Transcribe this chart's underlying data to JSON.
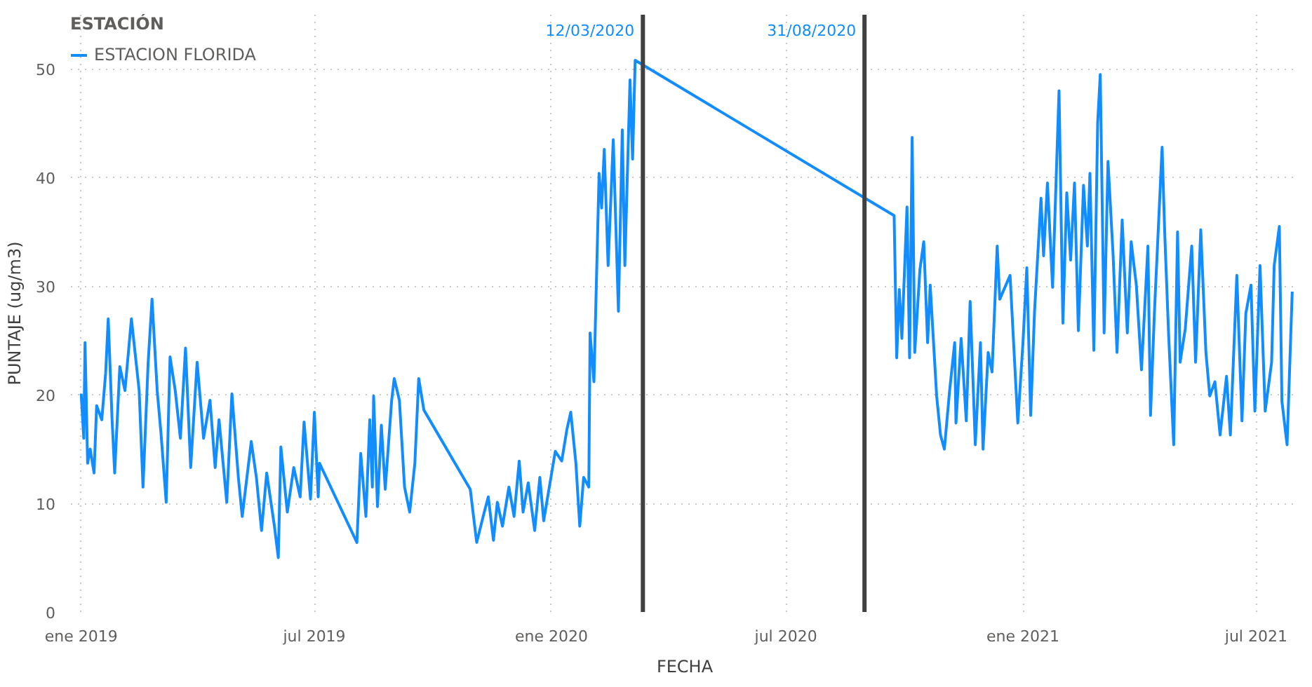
{
  "chart_data": {
    "type": "line",
    "xlabel": "FECHA",
    "ylabel": "PUNTAJE (ug/m3)",
    "legend_title": "ESTACIÓN",
    "x": [
      "2019-01-01",
      "2019-01-03",
      "2019-01-04",
      "2019-01-06",
      "2019-01-08",
      "2019-01-11",
      "2019-01-13",
      "2019-01-17",
      "2019-01-20",
      "2019-01-22",
      "2019-01-25",
      "2019-01-27",
      "2019-01-31",
      "2019-02-04",
      "2019-02-09",
      "2019-02-15",
      "2019-02-18",
      "2019-02-22",
      "2019-02-25",
      "2019-03-01",
      "2019-03-04",
      "2019-03-08",
      "2019-03-11",
      "2019-03-15",
      "2019-03-19",
      "2019-03-23",
      "2019-03-27",
      "2019-04-01",
      "2019-04-06",
      "2019-04-11",
      "2019-04-15",
      "2019-04-18",
      "2019-04-24",
      "2019-04-28",
      "2019-05-03",
      "2019-05-06",
      "2019-05-13",
      "2019-05-17",
      "2019-05-21",
      "2019-05-25",
      "2019-05-31",
      "2019-06-03",
      "2019-06-05",
      "2019-06-10",
      "2019-06-15",
      "2019-06-20",
      "2019-06-23",
      "2019-06-28",
      "2019-07-01",
      "2019-07-04",
      "2019-07-05",
      "2019-08-03",
      "2019-08-06",
      "2019-08-10",
      "2019-08-13",
      "2019-08-15",
      "2019-08-16",
      "2019-08-19",
      "2019-08-22",
      "2019-08-25",
      "2019-08-30",
      "2019-09-01",
      "2019-09-05",
      "2019-09-09",
      "2019-09-13",
      "2019-09-17",
      "2019-09-20",
      "2019-09-24",
      "2019-10-30",
      "2019-11-04",
      "2019-11-09",
      "2019-11-13",
      "2019-11-17",
      "2019-11-20",
      "2019-11-24",
      "2019-11-29",
      "2019-12-03",
      "2019-12-07",
      "2019-12-10",
      "2019-12-14",
      "2019-12-19",
      "2019-12-23",
      "2019-12-26",
      "2020-01-04",
      "2020-01-09",
      "2020-01-13",
      "2020-01-16",
      "2020-01-20",
      "2020-01-23",
      "2020-01-26",
      "2020-01-30",
      "2020-01-31",
      "2020-02-03",
      "2020-02-07",
      "2020-02-09",
      "2020-02-11",
      "2020-02-14",
      "2020-02-18",
      "2020-02-22",
      "2020-02-25",
      "2020-02-27",
      "2020-03-02",
      "2020-03-04",
      "2020-03-06",
      "2020-09-23",
      "2020-09-25",
      "2020-09-27",
      "2020-09-29",
      "2020-10-03",
      "2020-10-05",
      "2020-10-07",
      "2020-10-09",
      "2020-10-13",
      "2020-10-16",
      "2020-10-19",
      "2020-10-21",
      "2020-10-26",
      "2020-10-29",
      "2020-11-01",
      "2020-11-05",
      "2020-11-09",
      "2020-11-10",
      "2020-11-14",
      "2020-11-18",
      "2020-11-21",
      "2020-11-25",
      "2020-11-29",
      "2020-12-01",
      "2020-12-05",
      "2020-12-08",
      "2020-12-12",
      "2020-12-14",
      "2020-12-22",
      "2020-12-28",
      "2021-01-01",
      "2021-01-04",
      "2021-01-07",
      "2021-01-10",
      "2021-01-15",
      "2021-01-17",
      "2021-01-20",
      "2021-01-24",
      "2021-01-29",
      "2021-02-01",
      "2021-02-04",
      "2021-02-07",
      "2021-02-10",
      "2021-02-13",
      "2021-02-17",
      "2021-02-20",
      "2021-02-22",
      "2021-02-25",
      "2021-02-28",
      "2021-03-02",
      "2021-03-05",
      "2021-03-08",
      "2021-03-12",
      "2021-03-15",
      "2021-03-19",
      "2021-03-23",
      "2021-03-26",
      "2021-03-30",
      "2021-04-03",
      "2021-04-08",
      "2021-04-10",
      "2021-04-13",
      "2021-04-19",
      "2021-04-21",
      "2021-04-24",
      "2021-04-28",
      "2021-05-01",
      "2021-05-03",
      "2021-05-07",
      "2021-05-12",
      "2021-05-15",
      "2021-05-19",
      "2021-05-23",
      "2021-05-26",
      "2021-05-30",
      "2021-06-03",
      "2021-06-08",
      "2021-06-11",
      "2021-06-16",
      "2021-06-20",
      "2021-06-23",
      "2021-06-27",
      "2021-06-30",
      "2021-07-04",
      "2021-07-08",
      "2021-07-13",
      "2021-07-15",
      "2021-07-19",
      "2021-07-21",
      "2021-07-25",
      "2021-07-29"
    ],
    "series": [
      {
        "name": "ESTACION FLORIDA",
        "color": "#118dff",
        "values": [
          20.1,
          16,
          24.8,
          13.7,
          15,
          12.8,
          19,
          17.7,
          22,
          27,
          17.7,
          12.8,
          22.6,
          20.4,
          27,
          20.4,
          11.5,
          23,
          28.8,
          20.4,
          16.4,
          10.1,
          23.5,
          20.4,
          16,
          24.3,
          13.3,
          23,
          16,
          19.5,
          13.3,
          17.7,
          10.1,
          20.1,
          12.4,
          8.8,
          15.7,
          12.4,
          7.5,
          12.8,
          7.9,
          5,
          15.2,
          9.2,
          13.3,
          10.6,
          17.5,
          10.4,
          18.4,
          10.6,
          13.7,
          6.4,
          14.6,
          8.8,
          17.7,
          11.5,
          19.9,
          9.7,
          17.2,
          11.3,
          19.5,
          21.5,
          19.5,
          11.5,
          9.2,
          13.7,
          21.5,
          18.6,
          11.3,
          6.4,
          8.8,
          10.6,
          6.6,
          10.1,
          7.9,
          11.5,
          8.8,
          13.9,
          9.2,
          11.9,
          7.5,
          12.4,
          8.4,
          14.8,
          13.9,
          16.8,
          18.4,
          13.7,
          7.9,
          12.4,
          11.5,
          25.7,
          21.2,
          40.4,
          37.2,
          42.6,
          31.9,
          43.5,
          27.7,
          44.4,
          31.9,
          49,
          41.7,
          50.8,
          36.5,
          23.4,
          29.7,
          25.2,
          37.3,
          23.4,
          43.7,
          23.9,
          31.5,
          34.1,
          24.8,
          30.1,
          19.9,
          16.3,
          15,
          20.3,
          24.8,
          17.4,
          25.2,
          17.6,
          28.6,
          15.4,
          24.8,
          15,
          23.9,
          22.1,
          33.7,
          28.8,
          31,
          17.4,
          24.8,
          31.7,
          18.1,
          27.7,
          38.1,
          32.8,
          39.5,
          29.9,
          48,
          26.6,
          38.6,
          32.4,
          39.5,
          25.9,
          39.3,
          33.7,
          40.4,
          24.1,
          45.1,
          49.5,
          25.7,
          41.5,
          32.8,
          23.9,
          36.1,
          25.7,
          34.1,
          30.1,
          22.3,
          33.7,
          18.1,
          27.5,
          42.8,
          35,
          25.7,
          15.4,
          35,
          23,
          26.1,
          33.7,
          23,
          35.2,
          23.9,
          19.9,
          21.2,
          16.3,
          21.7,
          16.3,
          31,
          17.6,
          27.5,
          30.1,
          18.5,
          31.9,
          18.5,
          23,
          31.9,
          35.5,
          19.4,
          15.4,
          29.5
        ]
      }
    ],
    "xlim": [
      "2018-12-24",
      "2021-08-03"
    ],
    "xticks": [
      {
        "value": "2019-01-01",
        "label": "ene 2019"
      },
      {
        "value": "2019-07-01",
        "label": "jul 2019"
      },
      {
        "value": "2020-01-01",
        "label": "ene 2020"
      },
      {
        "value": "2020-07-01",
        "label": "jul 2020"
      },
      {
        "value": "2021-01-01",
        "label": "ene 2021"
      },
      {
        "value": "2021-07-01",
        "label": "jul 2021"
      }
    ],
    "ylim": [
      0,
      55
    ],
    "yticks": [
      0,
      10,
      20,
      30,
      40,
      50
    ],
    "ref_lines": [
      {
        "axis": "x",
        "value": "2020-03-12",
        "label": "12/03/2020",
        "color": "#404040"
      },
      {
        "axis": "x",
        "value": "2020-08-31",
        "label": "31/08/2020",
        "color": "#404040"
      }
    ],
    "grid": true,
    "legend": "top left",
    "marker": "none",
    "line_style": "solid"
  }
}
